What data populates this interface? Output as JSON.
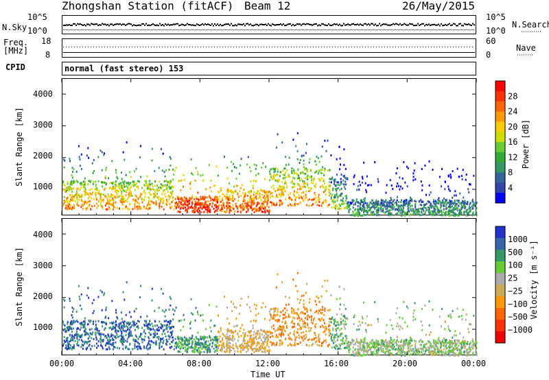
{
  "header": {
    "title": "Zhongshan Station (fitACF)",
    "beam": "Beam 12",
    "date": "26/May/2015"
  },
  "noise_panel": {
    "left_label": "N.Sky",
    "right_label": "N.Search",
    "left_ticks": [
      "10^5",
      "10^0"
    ],
    "right_ticks": [
      "10^5",
      "10^0"
    ]
  },
  "freq_panel": {
    "left_label_1": "Freq.",
    "left_label_2": "[MHz]",
    "left_ticks": [
      "18",
      "8"
    ],
    "right_label": "Nave",
    "right_ticks": [
      "60",
      "0"
    ]
  },
  "cpid": {
    "label": "CPID",
    "value": "normal (fast stereo) 153"
  },
  "power_panel": {
    "ylabel": "Slant Range [km]",
    "yticks": [
      "4000",
      "3000",
      "2000",
      "1000"
    ],
    "colorbar_label": "Power [dB]",
    "colorbar_ticks": [
      "28",
      "24",
      "20",
      "16",
      "12",
      "8",
      "4"
    ],
    "colorbar_colors": [
      "#ff0000",
      "#ff3300",
      "#ff6600",
      "#ff9900",
      "#ffcc00",
      "#ccdd00",
      "#66cc33",
      "#33aa33",
      "#339966",
      "#336699",
      "#3344aa",
      "#0000ff"
    ]
  },
  "velocity_panel": {
    "ylabel": "Slant Range [km]",
    "yticks": [
      "4000",
      "3000",
      "2000",
      "1000"
    ],
    "colorbar_label": "Velocity [m s⁻¹]",
    "colorbar_ticks": [
      "1000",
      "500",
      "100",
      "25",
      "−25",
      "−100",
      "−500",
      "−1000"
    ],
    "colorbar_colors": [
      "#2233cc",
      "#3366aa",
      "#339966",
      "#66cc33",
      "#aaaaaa",
      "#ccaa55",
      "#ff9900",
      "#ff6600",
      "#ff3300",
      "#ee0000"
    ]
  },
  "xaxis": {
    "label": "Time UT",
    "ticks": [
      "00:00",
      "04:00",
      "08:00",
      "12:00",
      "16:00",
      "20:00",
      "00:00"
    ]
  },
  "chart_data": [
    {
      "type": "heatmap",
      "title": "Zhongshan Station (fitACF) Beam 12",
      "xlabel": "Time UT",
      "ylabel": "Slant Range [km]",
      "xlim": [
        0,
        24
      ],
      "ylim": [
        180,
        4500
      ],
      "zlabel": "Power [dB]",
      "zlim": [
        0,
        32
      ],
      "colorbar_ticks": [
        4,
        8,
        12,
        16,
        20,
        24,
        28
      ]
    },
    {
      "type": "heatmap",
      "xlabel": "Time UT",
      "ylabel": "Slant Range [km]",
      "xlim": [
        0,
        24
      ],
      "ylim": [
        180,
        4500
      ],
      "zlabel": "Velocity [m s^-1]",
      "colorbar_ticks": [
        -1000,
        -500,
        -100,
        -25,
        25,
        100,
        500,
        1000
      ]
    }
  ]
}
